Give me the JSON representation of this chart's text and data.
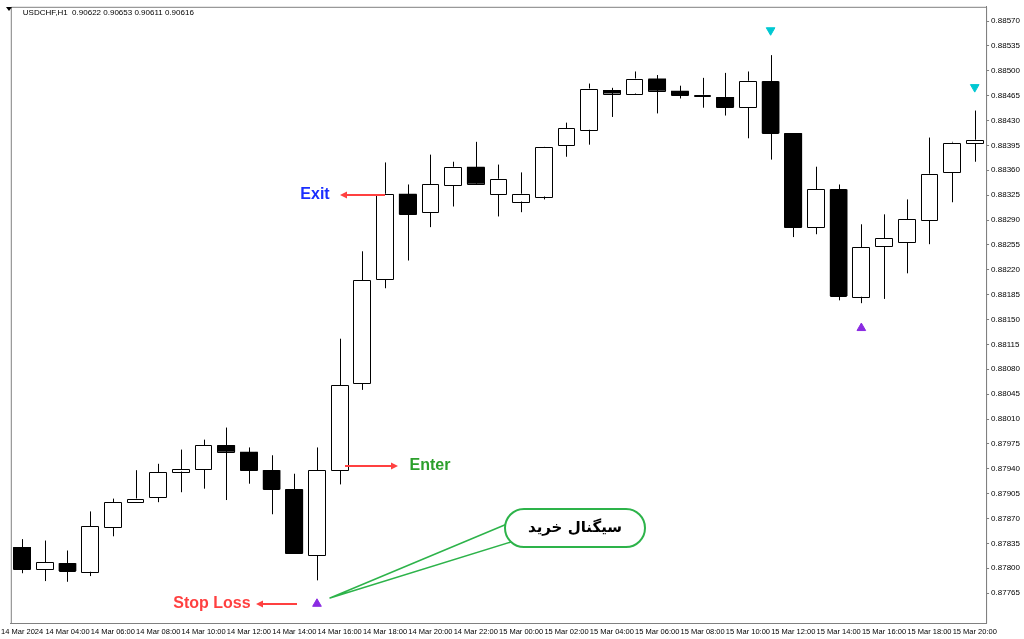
{
  "chart_data": {
    "type": "candlestick",
    "title": "USDCHF,H1  0.90622 0.90653 0.90611 0.90616",
    "categories": [
      "14 Mar 2024",
      null,
      "14 Mar 04:00",
      null,
      "14 Mar 06:00",
      null,
      "14 Mar 08:00",
      null,
      "14 Mar 10:00",
      null,
      "14 Mar 12:00",
      null,
      "14 Mar 14:00",
      null,
      "14 Mar 16:00",
      null,
      "14 Mar 18:00",
      null,
      "14 Mar 20:00",
      null,
      "14 Mar 22:00",
      null,
      "15 Mar 00:00",
      null,
      "15 Mar 02:00",
      null,
      "15 Mar 04:00",
      null,
      "15 Mar 06:00",
      null,
      "15 Mar 08:00",
      null,
      "15 Mar 10:00",
      null,
      "15 Mar 12:00",
      null,
      "15 Mar 14:00",
      null,
      "15 Mar 16:00",
      null,
      "15 Mar 18:00",
      null,
      "15 Mar 20:00"
    ],
    "ohlc": [
      [
        0.8783,
        0.87841,
        0.87793,
        0.87799
      ],
      [
        0.87799,
        0.87839,
        0.87782,
        0.87809
      ],
      [
        0.87807,
        0.87825,
        0.87781,
        0.87796
      ],
      [
        0.87795,
        0.8788,
        0.87789,
        0.87859
      ],
      [
        0.87858,
        0.87898,
        0.87845,
        0.87893
      ],
      [
        0.87893,
        0.87938,
        0.87893,
        0.87898
      ],
      [
        0.879,
        0.87947,
        0.87893,
        0.87935
      ],
      [
        0.87936,
        0.87967,
        0.87907,
        0.87939
      ],
      [
        0.87939,
        0.87981,
        0.87912,
        0.87973
      ],
      [
        0.87973,
        0.87998,
        0.87896,
        0.87964
      ],
      [
        0.87964,
        0.8797,
        0.87919,
        0.87938
      ],
      [
        0.87938,
        0.87959,
        0.87876,
        0.87911
      ],
      [
        0.87911,
        0.87933,
        0.87821,
        0.87821
      ],
      [
        0.87818,
        0.8797,
        0.87783,
        0.87938
      ],
      [
        0.87938,
        0.88123,
        0.87918,
        0.88058
      ],
      [
        0.8806,
        0.88246,
        0.88051,
        0.88205
      ],
      [
        0.88207,
        0.88371,
        0.88194,
        0.88327
      ],
      [
        0.88327,
        0.8834,
        0.88233,
        0.88298
      ],
      [
        0.88301,
        0.88382,
        0.8828,
        0.8834
      ],
      [
        0.88339,
        0.88372,
        0.88309,
        0.88365
      ],
      [
        0.88365,
        0.884,
        0.88341,
        0.88341
      ],
      [
        0.88326,
        0.88368,
        0.88295,
        0.88348
      ],
      [
        0.88316,
        0.88357,
        0.88301,
        0.88327
      ],
      [
        0.88323,
        0.88393,
        0.88319,
        0.88393
      ],
      [
        0.88395,
        0.88427,
        0.88379,
        0.88419
      ],
      [
        0.88417,
        0.88482,
        0.88396,
        0.88475
      ],
      [
        0.88473,
        0.88476,
        0.88435,
        0.88468
      ],
      [
        0.88468,
        0.88499,
        0.88466,
        0.88489
      ],
      [
        0.88489,
        0.88494,
        0.8844,
        0.88472
      ],
      [
        0.88472,
        0.88479,
        0.88461,
        0.88466
      ],
      [
        0.88465,
        0.8849,
        0.88448,
        0.88465
      ],
      [
        0.88463,
        0.88497,
        0.88437,
        0.88449
      ],
      [
        0.88449,
        0.88499,
        0.88405,
        0.88486
      ],
      [
        0.88485,
        0.88522,
        0.88375,
        0.88412
      ],
      [
        0.88412,
        0.88412,
        0.88266,
        0.8828
      ],
      [
        0.8828,
        0.88365,
        0.8827,
        0.88333
      ],
      [
        0.88333,
        0.8834,
        0.88177,
        0.88183
      ],
      [
        0.88182,
        0.88284,
        0.88173,
        0.88252
      ],
      [
        0.88253,
        0.88298,
        0.88179,
        0.88264
      ],
      [
        0.88259,
        0.88319,
        0.88215,
        0.88291
      ],
      [
        0.8829,
        0.88406,
        0.88256,
        0.88355
      ],
      [
        0.88357,
        0.884,
        0.88315,
        0.88399
      ],
      [
        0.88398,
        0.88444,
        0.88372,
        0.88403
      ]
    ],
    "colors": [
      "#000000",
      "#ffffff",
      "#000000",
      "#ffffff",
      "#ffffff",
      "#ffffff",
      "#ffffff",
      "#ffffff",
      "#ffffff",
      "#000000",
      "#000000",
      "#000000",
      "#000000",
      "#ffffff",
      "#ffffff",
      "#ffffff",
      "#ffffff",
      "#000000",
      "#ffffff",
      "#ffffff",
      "#000000",
      "#ffffff",
      "#ffffff",
      "#ffffff",
      "#ffffff",
      "#ffffff",
      "#000000",
      "#ffffff",
      "#000000",
      "#000000",
      "#ffffff",
      "#000000",
      "#ffffff",
      "#000000",
      "#000000",
      "#ffffff",
      "#000000",
      "#ffffff",
      "#ffffff",
      "#ffffff",
      "#ffffff",
      "#ffffff",
      "#ffffff"
    ],
    "series": [
      {
        "type": "scatter",
        "color": "#8a2be2",
        "values": [
          null,
          null,
          null,
          null,
          null,
          null,
          null,
          null,
          null,
          null,
          null,
          null,
          null,
          0.8775,
          null,
          null,
          null,
          null,
          null,
          null,
          null,
          null,
          null,
          null,
          null,
          null,
          null,
          null,
          null,
          null,
          null,
          null,
          null,
          null,
          null,
          null,
          null,
          0.88138,
          null,
          null,
          null,
          null,
          null
        ]
      },
      {
        "type": "scatter",
        "color": "#00c8d2",
        "values": [
          null,
          null,
          null,
          null,
          null,
          null,
          null,
          null,
          null,
          null,
          null,
          null,
          null,
          null,
          null,
          null,
          null,
          null,
          null,
          null,
          null,
          null,
          null,
          null,
          null,
          null,
          null,
          null,
          null,
          null,
          null,
          null,
          null,
          0.88557,
          null,
          null,
          null,
          null,
          null,
          null,
          null,
          null,
          0.88477
        ]
      }
    ],
    "marker": "triangle",
    "ylim": [
      0.87723,
      0.8859
    ],
    "yticks": [
      {
        "value": 0.8857,
        "label": "0.88570"
      },
      0.88535,
      {
        "value": 0.885,
        "label": "0.88500"
      },
      0.88465,
      {
        "value": 0.8843,
        "label": "0.88430"
      },
      0.88395,
      {
        "value": 0.8836,
        "label": "0.88360"
      },
      0.88325,
      {
        "value": 0.8829,
        "label": "0.88290"
      },
      0.88255,
      {
        "value": 0.8822,
        "label": "0.88220"
      },
      0.88185,
      {
        "value": 0.8815,
        "label": "0.88150"
      },
      0.88115,
      {
        "value": 0.8808,
        "label": "0.88080"
      },
      0.88045,
      {
        "value": 0.8801,
        "label": "0.88010"
      },
      0.87975,
      {
        "value": 0.8794,
        "label": "0.87940"
      },
      0.87905,
      {
        "value": 0.8787,
        "label": "0.87870"
      },
      0.87835,
      {
        "value": 0.878,
        "label": "0.87800"
      },
      0.87765
    ],
    "grid": false,
    "legend": false,
    "annotations": [
      "Exit",
      "Enter",
      "Stop Loss",
      "سیگنال خرید"
    ]
  }
}
